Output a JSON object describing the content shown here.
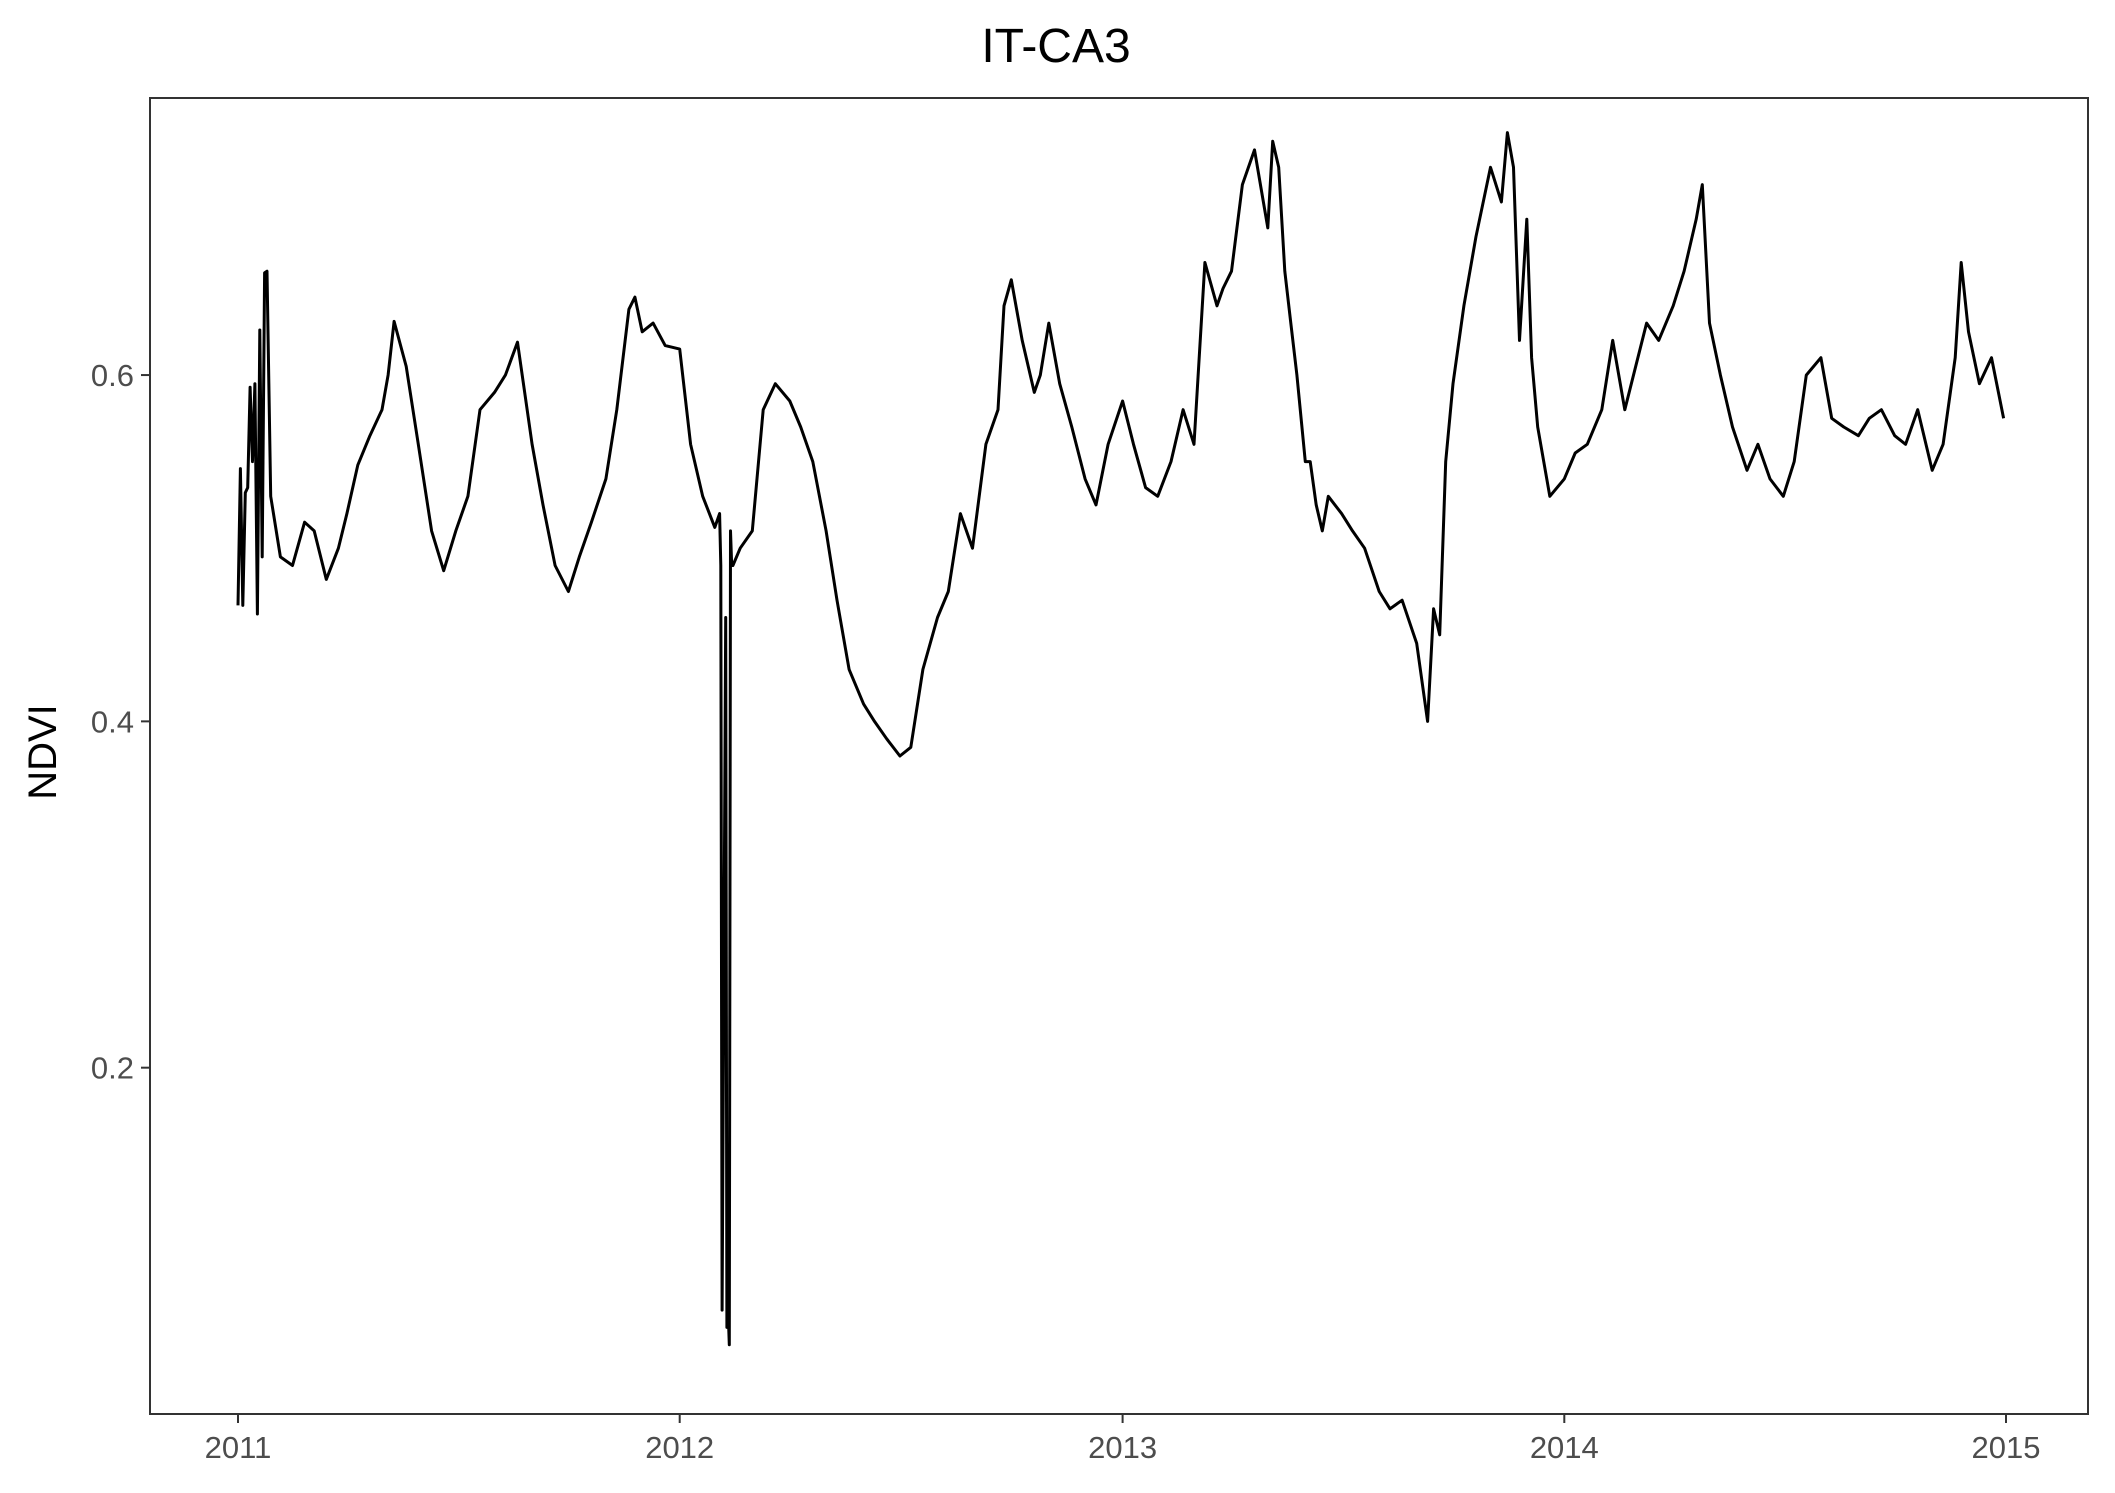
{
  "chart_data": {
    "type": "line",
    "title": "IT-CA3",
    "xlabel": "",
    "ylabel": "NDVI",
    "xlim": [
      "2011-01-01",
      "2015-01-01"
    ],
    "ylim": [
      0.0,
      0.76
    ],
    "x_ticks": [
      "2011",
      "2012",
      "2013",
      "2014",
      "2015"
    ],
    "y_ticks": [
      "0.2",
      "0.4",
      "0.6"
    ],
    "y_tick_values": [
      0.2,
      0.4,
      0.6
    ],
    "grid": false,
    "legend": "none",
    "line_color": "#000000",
    "series": [
      {
        "x": [
          "2011-01-01",
          "2011-01-03",
          "2011-01-05",
          "2011-01-07",
          "2011-01-09",
          "2011-01-11",
          "2011-01-13",
          "2011-01-15",
          "2011-01-17",
          "2011-01-19",
          "2011-01-21",
          "2011-01-23",
          "2011-01-25",
          "2011-01-28",
          "2011-02-05",
          "2011-02-15",
          "2011-02-25",
          "2011-03-05",
          "2011-03-15",
          "2011-03-25",
          "2011-04-01",
          "2011-04-10",
          "2011-04-20",
          "2011-04-30",
          "2011-05-05",
          "2011-05-10",
          "2011-05-20",
          "2011-05-30",
          "2011-06-10",
          "2011-06-20",
          "2011-06-30",
          "2011-07-10",
          "2011-07-20",
          "2011-08-01",
          "2011-08-10",
          "2011-08-20",
          "2011-09-01",
          "2011-09-10",
          "2011-09-20",
          "2011-10-01",
          "2011-10-10",
          "2011-10-20",
          "2011-11-01",
          "2011-11-10",
          "2011-11-20",
          "2011-11-25",
          "2011-12-01",
          "2011-12-10",
          "2011-12-20",
          "2012-01-01",
          "2012-01-10",
          "2012-01-20",
          "2012-01-30",
          "2012-02-03",
          "2012-02-04",
          "2012-02-05",
          "2012-02-08",
          "2012-02-09",
          "2012-02-10",
          "2012-02-11",
          "2012-02-12",
          "2012-02-13",
          "2012-02-14",
          "2012-02-20",
          "2012-03-01",
          "2012-03-10",
          "2012-03-20",
          "2012-04-01",
          "2012-04-10",
          "2012-04-20",
          "2012-05-01",
          "2012-05-10",
          "2012-05-20",
          "2012-06-01",
          "2012-06-10",
          "2012-06-20",
          "2012-07-01",
          "2012-07-10",
          "2012-07-20",
          "2012-08-01",
          "2012-08-10",
          "2012-08-20",
          "2012-08-30",
          "2012-09-10",
          "2012-09-20",
          "2012-09-25",
          "2012-10-01",
          "2012-10-10",
          "2012-10-20",
          "2012-10-25",
          "2012-11-01",
          "2012-11-10",
          "2012-11-20",
          "2012-12-01",
          "2012-12-10",
          "2012-12-20",
          "2013-01-01",
          "2013-01-10",
          "2013-01-20",
          "2013-01-30",
          "2013-02-10",
          "2013-02-20",
          "2013-03-01",
          "2013-03-10",
          "2013-03-20",
          "2013-03-25",
          "2013-04-01",
          "2013-04-10",
          "2013-04-20",
          "2013-05-01",
          "2013-05-05",
          "2013-05-10",
          "2013-05-15",
          "2013-05-20",
          "2013-05-25",
          "2013-06-01",
          "2013-06-05",
          "2013-06-10",
          "2013-06-15",
          "2013-06-20",
          "2013-07-01",
          "2013-07-10",
          "2013-07-20",
          "2013-08-01",
          "2013-08-10",
          "2013-08-20",
          "2013-09-01",
          "2013-09-10",
          "2013-09-15",
          "2013-09-20",
          "2013-09-25",
          "2013-10-01",
          "2013-10-10",
          "2013-10-20",
          "2013-11-01",
          "2013-11-10",
          "2013-11-15",
          "2013-11-20",
          "2013-11-25",
          "2013-12-01",
          "2013-12-05",
          "2013-12-10",
          "2013-12-20",
          "2014-01-01",
          "2014-01-10",
          "2014-01-20",
          "2014-02-01",
          "2014-02-10",
          "2014-02-20",
          "2014-03-01",
          "2014-03-10",
          "2014-03-20",
          "2014-04-01",
          "2014-04-10",
          "2014-04-20",
          "2014-04-25",
          "2014-05-01",
          "2014-05-10",
          "2014-05-20",
          "2014-06-01",
          "2014-06-10",
          "2014-06-20",
          "2014-07-01",
          "2014-07-10",
          "2014-07-20",
          "2014-08-01",
          "2014-08-10",
          "2014-08-20",
          "2014-09-01",
          "2014-09-10",
          "2014-09-20",
          "2014-10-01",
          "2014-10-10",
          "2014-10-20",
          "2014-11-01",
          "2014-11-10",
          "2014-11-20",
          "2014-11-25",
          "2014-12-01",
          "2014-12-10",
          "2014-12-20",
          "2014-12-30"
        ],
        "y": [
          0.467,
          0.546,
          0.467,
          0.532,
          0.535,
          0.593,
          0.55,
          0.595,
          0.462,
          0.626,
          0.495,
          0.659,
          0.66,
          0.53,
          0.495,
          0.49,
          0.515,
          0.51,
          0.482,
          0.5,
          0.52,
          0.548,
          0.565,
          0.58,
          0.6,
          0.631,
          0.605,
          0.56,
          0.51,
          0.487,
          0.51,
          0.53,
          0.58,
          0.59,
          0.6,
          0.619,
          0.56,
          0.525,
          0.49,
          0.475,
          0.495,
          0.515,
          0.54,
          0.58,
          0.638,
          0.645,
          0.625,
          0.63,
          0.617,
          0.615,
          0.56,
          0.53,
          0.512,
          0.52,
          0.49,
          0.06,
          0.46,
          0.05,
          0.06,
          0.04,
          0.51,
          0.49,
          0.49,
          0.5,
          0.51,
          0.58,
          0.595,
          0.585,
          0.57,
          0.55,
          0.51,
          0.47,
          0.43,
          0.41,
          0.4,
          0.39,
          0.38,
          0.385,
          0.43,
          0.46,
          0.475,
          0.52,
          0.5,
          0.56,
          0.58,
          0.64,
          0.655,
          0.62,
          0.59,
          0.6,
          0.63,
          0.595,
          0.57,
          0.54,
          0.525,
          0.56,
          0.585,
          0.56,
          0.535,
          0.53,
          0.55,
          0.58,
          0.56,
          0.665,
          0.64,
          0.65,
          0.66,
          0.71,
          0.73,
          0.685,
          0.735,
          0.72,
          0.66,
          0.63,
          0.6,
          0.55,
          0.55,
          0.525,
          0.51,
          0.53,
          0.52,
          0.51,
          0.5,
          0.475,
          0.465,
          0.47,
          0.445,
          0.4,
          0.465,
          0.45,
          0.55,
          0.595,
          0.64,
          0.68,
          0.72,
          0.7,
          0.74,
          0.72,
          0.62,
          0.69,
          0.61,
          0.57,
          0.53,
          0.54,
          0.555,
          0.56,
          0.58,
          0.62,
          0.58,
          0.605,
          0.63,
          0.62,
          0.64,
          0.66,
          0.69,
          0.71,
          0.63,
          0.6,
          0.57,
          0.545,
          0.56,
          0.54,
          0.53,
          0.55,
          0.6,
          0.61,
          0.575,
          0.57,
          0.565,
          0.575,
          0.58,
          0.565,
          0.56,
          0.58,
          0.545,
          0.56,
          0.61,
          0.665,
          0.625,
          0.595,
          0.61,
          0.575
        ]
      }
    ]
  }
}
